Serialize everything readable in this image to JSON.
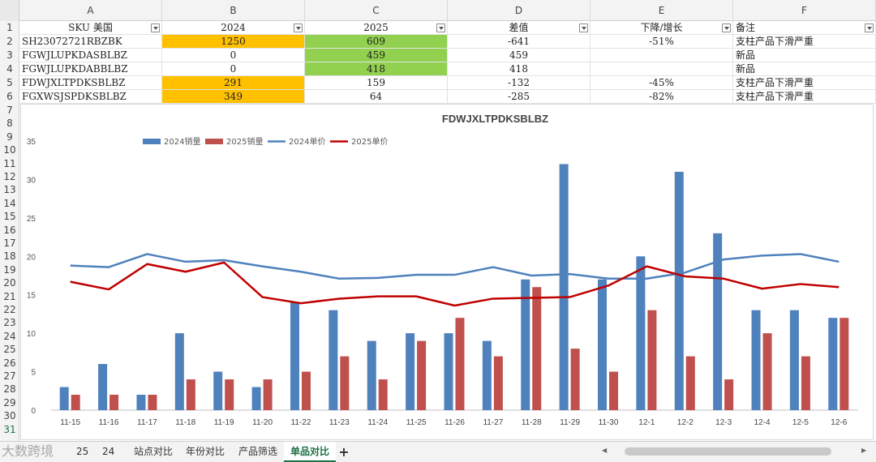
{
  "columns": [
    "A",
    "B",
    "C",
    "D",
    "E",
    "F"
  ],
  "rows": [
    "1",
    "2",
    "3",
    "4",
    "5",
    "6",
    "7",
    "8",
    "9",
    "10",
    "11",
    "12",
    "13",
    "14",
    "15",
    "16",
    "17",
    "18",
    "19",
    "20",
    "21",
    "22",
    "23",
    "24",
    "25",
    "26",
    "27",
    "28",
    "29",
    "30",
    "31"
  ],
  "table": {
    "headers": [
      "SKU  美国",
      "2024",
      "2025",
      "差值",
      "下降/增长",
      "备注"
    ],
    "data": [
      [
        "SH23072721RBZBK",
        "1250",
        "609",
        "-641",
        "-51%",
        "支柱产品下滑严重"
      ],
      [
        "FGWJLUPKDASBLBZ",
        "0",
        "459",
        "459",
        "",
        "新品"
      ],
      [
        "FGWJLUPKDABBLBZ",
        "0",
        "418",
        "418",
        "",
        "新品"
      ],
      [
        "FDWJXLTPDKSBLBZ",
        "291",
        "159",
        "-132",
        "-45%",
        "支柱产品下滑严重"
      ],
      [
        "FGXWSJSPDKSBLBZ",
        "349",
        "64",
        "-285",
        "-82%",
        "支柱产品下滑严重"
      ]
    ]
  },
  "colors": {
    "orange": "#ffc000",
    "green": "#92d050",
    "bar2024": "#4f81bd",
    "bar2025": "#c0504d",
    "line2024": "#4f81bd",
    "line2025": "#c00000",
    "accent": "#1e7145"
  },
  "chart_data": {
    "type": "bar",
    "title": "FDWJXLTPDKSBLBZ",
    "categories": [
      "11-15",
      "11-16",
      "11-17",
      "11-18",
      "11-19",
      "11-20",
      "11-22",
      "11-23",
      "11-24",
      "11-25",
      "11-26",
      "11-27",
      "11-28",
      "11-29",
      "11-30",
      "12-1",
      "12-2",
      "12-3",
      "12-4",
      "12-5",
      "12-6"
    ],
    "series": [
      {
        "name": "2024销量",
        "kind": "bar",
        "values": [
          3,
          6,
          2,
          10,
          5,
          3,
          14,
          13,
          9,
          10,
          10,
          9,
          17,
          32,
          17,
          20,
          31,
          23,
          13,
          13,
          12
        ]
      },
      {
        "name": "2025销量",
        "kind": "bar",
        "values": [
          2,
          2,
          2,
          4,
          4,
          4,
          5,
          7,
          4,
          9,
          12,
          7,
          16,
          8,
          5,
          13,
          7,
          4,
          10,
          7,
          12
        ]
      },
      {
        "name": "2024单价",
        "kind": "line",
        "values": [
          18.8,
          18.6,
          20.3,
          19.3,
          19.5,
          18.7,
          18.0,
          17.1,
          17.2,
          17.6,
          17.6,
          18.6,
          17.5,
          17.7,
          17.1,
          17.1,
          17.9,
          19.6,
          20.1,
          20.3,
          19.3
        ]
      },
      {
        "name": "2025单价",
        "kind": "line",
        "values": [
          16.7,
          15.7,
          19.0,
          18.0,
          19.2,
          14.7,
          13.9,
          14.5,
          14.8,
          14.8,
          13.6,
          14.5,
          14.6,
          14.7,
          16.2,
          18.7,
          17.4,
          17.1,
          15.8,
          16.4,
          16.0
        ]
      }
    ],
    "ylim": [
      0,
      35
    ],
    "yticks": [
      0,
      5,
      10,
      15,
      20,
      25,
      30,
      35
    ],
    "legend": "top-left",
    "grid": false
  },
  "sheet_tabs": [
    "25",
    "24",
    "站点对比",
    "年份对比",
    "产品筛选",
    "单品对比"
  ],
  "active_tab": "单品对比",
  "add_tab": "+",
  "watermark": "大数跨境",
  "scroll_left": "◀",
  "scroll_right": "▶"
}
